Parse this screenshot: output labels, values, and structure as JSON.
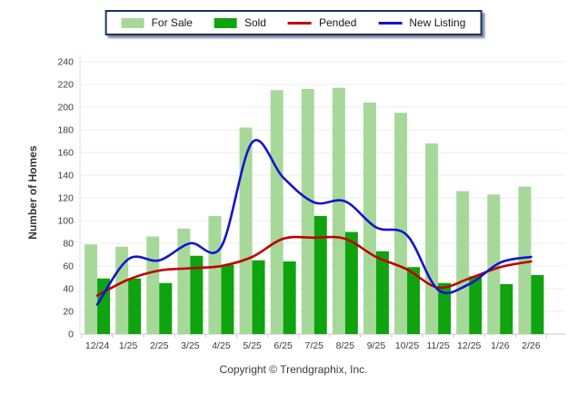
{
  "y_axis_title": "Number of Homes",
  "footer": {
    "copyright": "Copyright © Trendgraphix, Inc."
  },
  "legend": {
    "items": [
      {
        "label": "For Sale",
        "type": "bar",
        "color": "#A6D999"
      },
      {
        "label": "Sold",
        "type": "bar",
        "color": "#0FA30F"
      },
      {
        "label": "Pended",
        "type": "line",
        "color": "#C00000"
      },
      {
        "label": "New Listing",
        "type": "line",
        "color": "#1414D2"
      }
    ]
  },
  "chart_data": {
    "type": "bar+line",
    "title": "",
    "xlabel": "",
    "ylabel": "Number of Homes",
    "ylim": [
      0,
      240
    ],
    "ytick_step": 20,
    "grid": true,
    "legend_position": "top",
    "categories": [
      "12/24",
      "1/25",
      "2/25",
      "3/25",
      "4/25",
      "5/25",
      "6/25",
      "7/25",
      "8/25",
      "9/25",
      "10/25",
      "11/25",
      "12/25",
      "1/26",
      "2/26"
    ],
    "series": [
      {
        "name": "For Sale",
        "type": "bar",
        "color": "#A6D999",
        "values": [
          79,
          77,
          86,
          93,
          104,
          182,
          215,
          216,
          217,
          204,
          195,
          168,
          126,
          123,
          130
        ]
      },
      {
        "name": "Sold",
        "type": "bar",
        "color": "#0FA30F",
        "values": [
          49,
          49,
          45,
          69,
          61,
          65,
          64,
          104,
          90,
          73,
          59,
          45,
          51,
          44,
          52
        ]
      },
      {
        "name": "Pended",
        "type": "line",
        "color": "#C00000",
        "values": [
          34,
          48,
          56,
          58,
          60,
          68,
          84,
          85,
          84,
          68,
          57,
          41,
          49,
          59,
          64
        ]
      },
      {
        "name": "New Listing",
        "type": "line",
        "color": "#1414D2",
        "values": [
          26,
          66,
          65,
          80,
          77,
          169,
          138,
          116,
          117,
          94,
          87,
          39,
          44,
          63,
          68
        ]
      }
    ]
  }
}
